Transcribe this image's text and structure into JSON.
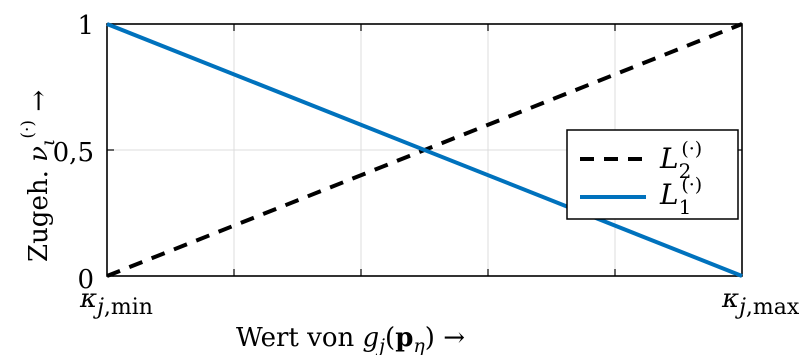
{
  "chart_data": {
    "type": "line",
    "xlabel": "Wert von g_j(p_η) →",
    "ylabel": "Zugeh. ν_ι^(·) →",
    "xlim": [
      0,
      1
    ],
    "ylim": [
      0,
      1
    ],
    "x_tick_labels": [
      "κ_j,min",
      "κ_j,max"
    ],
    "y_tick_labels": [
      "0",
      "0,5",
      "1"
    ],
    "y_ticks": [
      0,
      0.5,
      1
    ],
    "grid": true,
    "legend_position": "right",
    "series": [
      {
        "name": "L_2^(·)",
        "style": "dashed",
        "color": "#000000",
        "x": [
          0,
          1
        ],
        "y": [
          0,
          1
        ]
      },
      {
        "name": "L_1^(·)",
        "style": "solid",
        "color": "#0072BD",
        "x": [
          0,
          1
        ],
        "y": [
          1,
          0
        ]
      }
    ]
  }
}
